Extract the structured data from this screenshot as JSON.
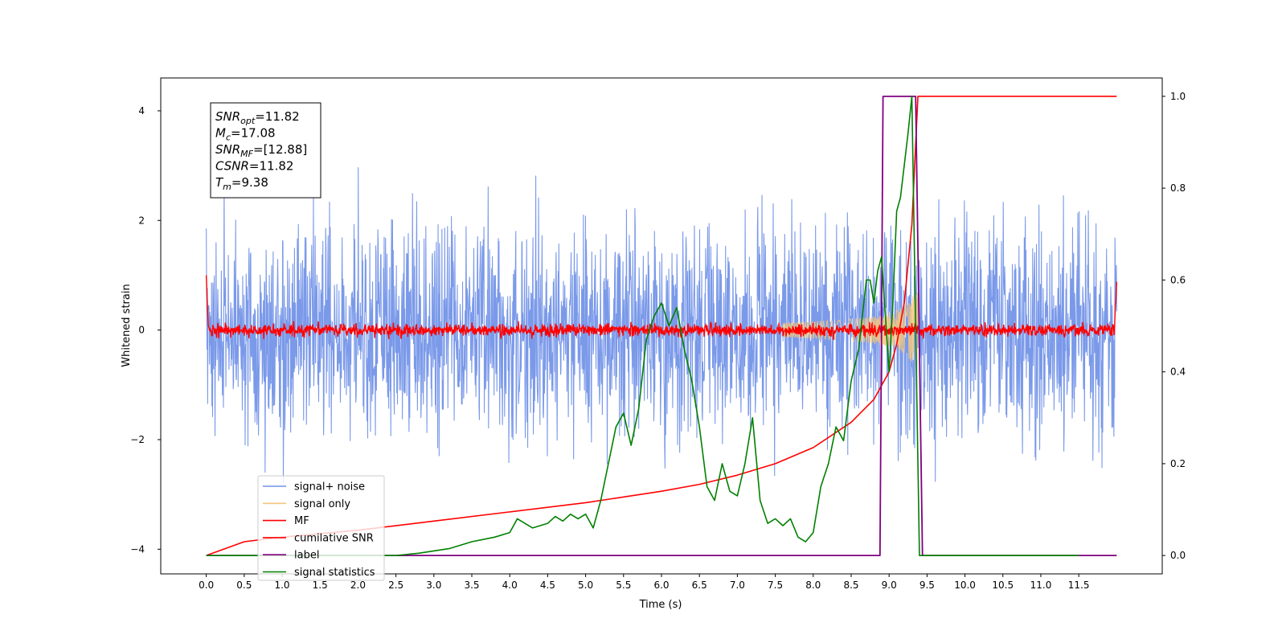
{
  "chart_data": {
    "type": "line",
    "xlabel": "Time (s)",
    "ylabel": "Whitened strain",
    "xlim": [
      -0.6,
      12.6
    ],
    "ylim": [
      -4.45,
      4.6
    ],
    "y2lim": [
      -0.04,
      1.04
    ],
    "x_ticks": [
      "0.0",
      "0.5",
      "1.0",
      "1.5",
      "2.0",
      "2.5",
      "3.0",
      "3.5",
      "4.0",
      "4.5",
      "5.0",
      "5.5",
      "6.0",
      "6.5",
      "7.0",
      "7.5",
      "8.0",
      "8.5",
      "9.0",
      "9.5",
      "10.0",
      "10.5",
      "11.0",
      "11.5"
    ],
    "y_ticks": [
      "−4",
      "−2",
      "0",
      "2",
      "4"
    ],
    "y2_ticks": [
      "0.0",
      "0.2",
      "0.4",
      "0.6",
      "0.8",
      "1.0"
    ],
    "legend_position": "lower-left",
    "annotation": [
      {
        "sym": "SNR",
        "sub": "opt",
        "value": "=11.82"
      },
      {
        "sym": "M",
        "sub": "c",
        "value": "=17.08"
      },
      {
        "sym": "SNR",
        "sub": "MF",
        "value": "=[12.88]"
      },
      {
        "sym": "CSNR",
        "sub": "",
        "value": "=11.82"
      },
      {
        "sym": "T",
        "sub": "m",
        "value": "=9.38"
      }
    ],
    "series": [
      {
        "name": "signal+ noise",
        "color": "#7393e8",
        "axis": "left",
        "kind": "noise",
        "x_range": [
          0,
          12.0
        ],
        "std": 0.95,
        "peak_range": [
          -4.0,
          3.3
        ]
      },
      {
        "name": "signal only",
        "color": "#f5c77e",
        "axis": "left",
        "kind": "chirp",
        "peak_time": 9.38,
        "peak_amplitude": 0.9
      },
      {
        "name": "MF",
        "color": "#ff0000",
        "axis": "left",
        "kind": "mf",
        "x_range": [
          0,
          12.0
        ],
        "amplitude": 0.1,
        "start_value": 1.0,
        "end_value": 0.88
      },
      {
        "name": "cumilative SNR",
        "color": "#ff0000",
        "axis": "right",
        "x": [
          0.0,
          0.5,
          1.0,
          2.0,
          3.0,
          4.0,
          5.0,
          6.0,
          6.5,
          7.0,
          7.5,
          8.0,
          8.5,
          8.8,
          9.0,
          9.1,
          9.2,
          9.3,
          9.38,
          9.4,
          12.0
        ],
        "y": [
          0.0,
          0.03,
          0.04,
          0.055,
          0.075,
          0.095,
          0.115,
          0.14,
          0.155,
          0.175,
          0.2,
          0.235,
          0.29,
          0.34,
          0.4,
          0.46,
          0.55,
          0.72,
          1.0,
          1.0,
          1.0
        ]
      },
      {
        "name": "label",
        "color": "#800080",
        "axis": "right",
        "x": [
          0.0,
          8.88,
          8.92,
          9.35,
          9.44,
          12.0
        ],
        "y": [
          0,
          0,
          1,
          1,
          0,
          0
        ]
      },
      {
        "name": "signal statistics",
        "color": "#008000",
        "axis": "right",
        "x": [
          0.0,
          2.0,
          2.5,
          2.8,
          3.0,
          3.2,
          3.5,
          3.8,
          4.0,
          4.1,
          4.3,
          4.5,
          4.6,
          4.7,
          4.8,
          4.9,
          5.0,
          5.1,
          5.2,
          5.3,
          5.4,
          5.5,
          5.6,
          5.7,
          5.8,
          5.9,
          6.0,
          6.1,
          6.2,
          6.3,
          6.4,
          6.5,
          6.6,
          6.7,
          6.8,
          6.9,
          7.0,
          7.1,
          7.2,
          7.3,
          7.4,
          7.5,
          7.6,
          7.7,
          7.8,
          7.9,
          8.0,
          8.1,
          8.2,
          8.3,
          8.4,
          8.5,
          8.6,
          8.7,
          8.75,
          8.8,
          8.85,
          8.9,
          9.0,
          9.05,
          9.1,
          9.15,
          9.2,
          9.25,
          9.3,
          9.35,
          9.4,
          9.45,
          11.5
        ],
        "y": [
          0.0,
          0.0,
          0.0,
          0.005,
          0.01,
          0.015,
          0.03,
          0.04,
          0.05,
          0.08,
          0.06,
          0.07,
          0.085,
          0.075,
          0.09,
          0.08,
          0.09,
          0.06,
          0.12,
          0.2,
          0.28,
          0.31,
          0.24,
          0.32,
          0.47,
          0.52,
          0.55,
          0.5,
          0.54,
          0.45,
          0.38,
          0.28,
          0.15,
          0.12,
          0.2,
          0.14,
          0.13,
          0.2,
          0.3,
          0.12,
          0.07,
          0.08,
          0.065,
          0.08,
          0.04,
          0.03,
          0.05,
          0.15,
          0.2,
          0.28,
          0.25,
          0.38,
          0.45,
          0.6,
          0.6,
          0.55,
          0.62,
          0.65,
          0.4,
          0.55,
          0.75,
          0.78,
          0.85,
          0.92,
          1.0,
          0.5,
          0.0,
          0.0,
          0.0
        ]
      }
    ]
  }
}
